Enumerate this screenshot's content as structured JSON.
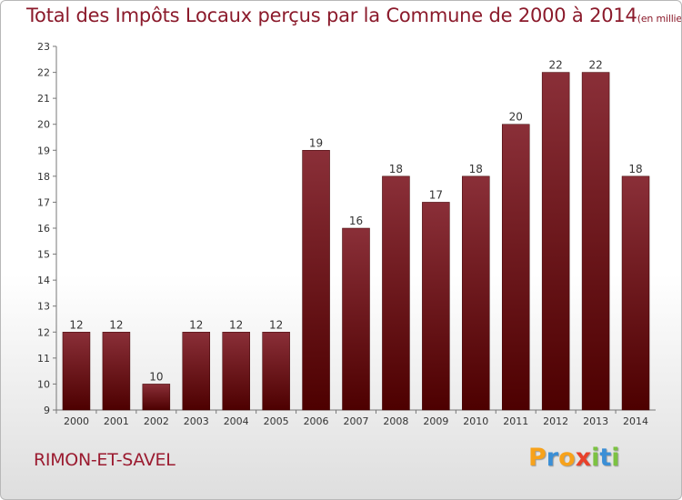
{
  "chart_data": {
    "type": "bar",
    "title": "Total des Impôts Locaux perçus par la Commune de 2000 à 2014",
    "subtitle": "(en milliers d'€)",
    "categories": [
      "2000",
      "2001",
      "2002",
      "2003",
      "2004",
      "2005",
      "2006",
      "2007",
      "2008",
      "2009",
      "2010",
      "2011",
      "2012",
      "2013",
      "2014"
    ],
    "values": [
      12,
      12,
      10,
      12,
      12,
      12,
      19,
      16,
      18,
      17,
      18,
      20,
      22,
      22,
      18
    ],
    "ylim": [
      9,
      23
    ],
    "yticks": [
      9,
      10,
      11,
      12,
      13,
      14,
      15,
      16,
      17,
      18,
      19,
      20,
      21,
      22,
      23
    ],
    "xlabel": "",
    "ylabel": "",
    "grid": false,
    "bar_color": "#7a1520"
  },
  "footer": {
    "commune": "RIMON-ET-SAVEL",
    "logo_letters": [
      "P",
      "r",
      "o",
      "x",
      "i",
      "t",
      "i"
    ],
    "logo_colors": [
      "#f7a21b",
      "#3b8fd6",
      "#f7a21b",
      "#e8412b",
      "#7cc242",
      "#3b8fd6",
      "#7cc242"
    ]
  }
}
